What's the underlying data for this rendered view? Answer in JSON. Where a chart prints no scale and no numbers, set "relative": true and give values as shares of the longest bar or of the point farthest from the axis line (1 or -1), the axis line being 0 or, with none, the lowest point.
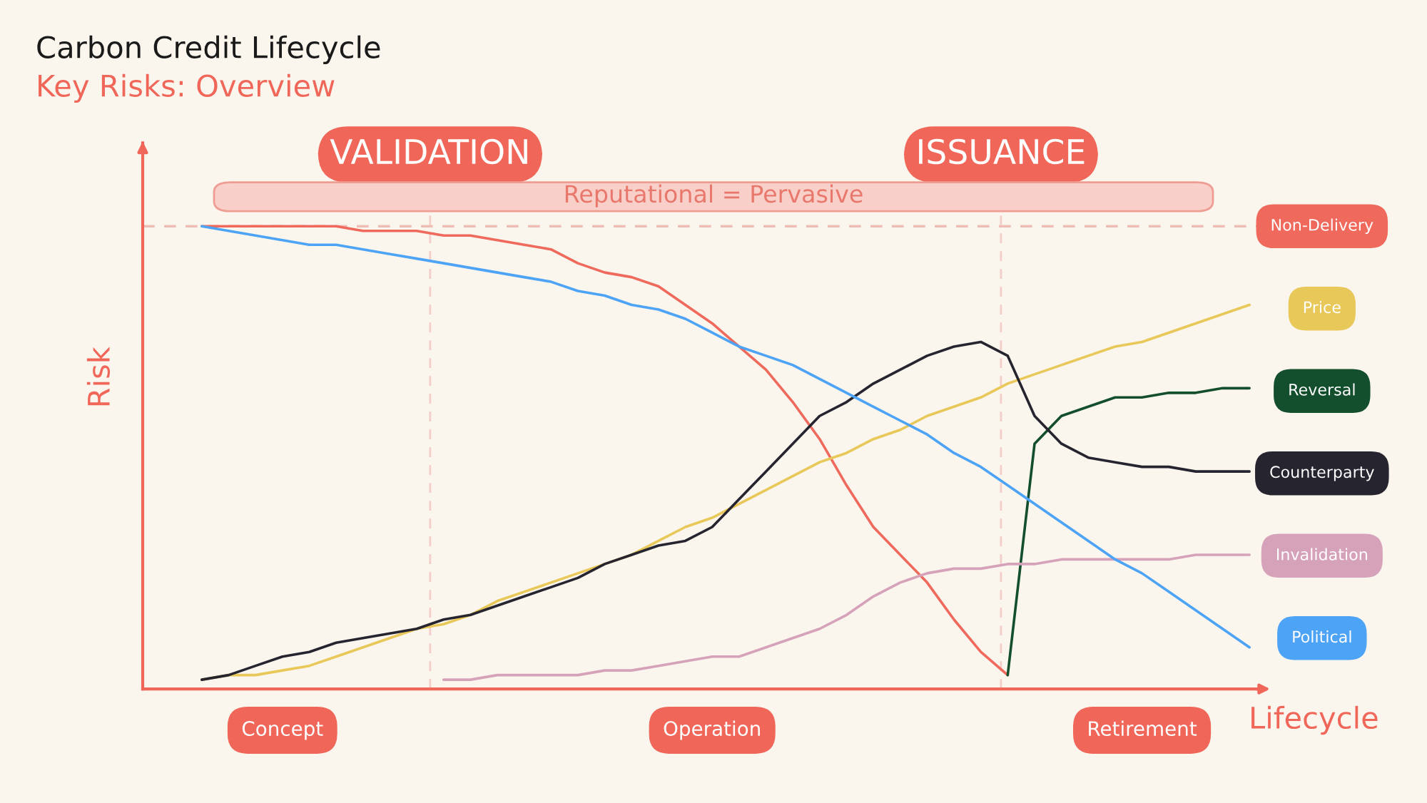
{
  "chart_data": {
    "type": "line",
    "title": "Carbon Credit Lifecycle",
    "subtitle": "Key Risks: Overview",
    "xlabel": "Lifecycle",
    "ylabel": "Risk",
    "relative": true,
    "categories": [
      null,
      null,
      null,
      "Concept",
      null,
      null,
      null,
      null,
      null,
      null,
      null,
      null,
      null,
      null,
      null,
      null,
      null,
      null,
      null,
      "Operation",
      null,
      null,
      null,
      null,
      null,
      null,
      null,
      null,
      null,
      null,
      null,
      null,
      null,
      null,
      null,
      "Retirement",
      null,
      null,
      null,
      null
    ],
    "series": [
      {
        "name": "Non-Delivery",
        "color": "#ef6a5c",
        "values": [
          1.0,
          1.0,
          1.0,
          1.0,
          1.0,
          1.0,
          0.99,
          0.99,
          0.99,
          0.98,
          0.98,
          0.97,
          0.96,
          0.95,
          0.92,
          0.9,
          0.89,
          0.87,
          0.83,
          0.79,
          0.74,
          0.69,
          0.62,
          0.54,
          0.44,
          0.35,
          0.29,
          0.23,
          0.15,
          0.08,
          0.03,
          null,
          null,
          null,
          null,
          null,
          null,
          null,
          null,
          null
        ]
      },
      {
        "name": "Price",
        "color": "#e9c85a",
        "values": [
          0.02,
          0.03,
          0.03,
          0.04,
          0.05,
          0.07,
          0.09,
          0.11,
          0.13,
          0.14,
          0.16,
          0.19,
          0.21,
          0.23,
          0.25,
          0.27,
          0.29,
          0.32,
          0.35,
          0.37,
          0.4,
          0.43,
          0.46,
          0.49,
          0.51,
          0.54,
          0.56,
          0.59,
          0.61,
          0.63,
          0.66,
          0.68,
          0.7,
          0.72,
          0.74,
          0.75,
          0.77,
          0.79,
          0.81,
          0.83
        ]
      },
      {
        "name": "Reversal",
        "color": "#134e2d",
        "values": [
          null,
          null,
          null,
          null,
          null,
          null,
          null,
          null,
          null,
          null,
          null,
          null,
          null,
          null,
          null,
          null,
          null,
          null,
          null,
          null,
          null,
          null,
          null,
          null,
          null,
          null,
          null,
          null,
          null,
          null,
          0.03,
          0.53,
          0.59,
          0.61,
          0.63,
          0.63,
          0.64,
          0.64,
          0.65,
          0.65
        ]
      },
      {
        "name": "Counterparty",
        "color": "#25242f",
        "values": [
          0.02,
          0.03,
          0.05,
          0.07,
          0.08,
          0.1,
          0.11,
          0.12,
          0.13,
          0.15,
          0.16,
          0.18,
          0.2,
          0.22,
          0.24,
          0.27,
          0.29,
          0.31,
          0.32,
          0.35,
          0.41,
          0.47,
          0.53,
          0.59,
          0.62,
          0.66,
          0.69,
          0.72,
          0.74,
          0.75,
          0.72,
          0.59,
          0.53,
          0.5,
          0.49,
          0.48,
          0.48,
          0.47,
          0.47,
          0.47
        ]
      },
      {
        "name": "Invalidation",
        "color": "#d6a2ba",
        "values": [
          null,
          null,
          null,
          null,
          null,
          null,
          null,
          null,
          null,
          0.02,
          0.02,
          0.03,
          0.03,
          0.03,
          0.03,
          0.04,
          0.04,
          0.05,
          0.06,
          0.07,
          0.07,
          0.09,
          0.11,
          0.13,
          0.16,
          0.2,
          0.23,
          0.25,
          0.26,
          0.26,
          0.27,
          0.27,
          0.28,
          0.28,
          0.28,
          0.28,
          0.28,
          0.29,
          0.29,
          0.29
        ]
      },
      {
        "name": "Political",
        "color": "#4da3f5",
        "values": [
          1.0,
          0.99,
          0.98,
          0.97,
          0.96,
          0.96,
          0.95,
          0.94,
          0.93,
          0.92,
          0.91,
          0.9,
          0.89,
          0.88,
          0.86,
          0.85,
          0.83,
          0.82,
          0.8,
          0.77,
          0.74,
          0.72,
          0.7,
          0.67,
          0.64,
          0.61,
          0.58,
          0.55,
          0.51,
          0.48,
          0.44,
          0.4,
          0.36,
          0.32,
          0.28,
          0.25,
          0.21,
          0.17,
          0.13,
          0.09
        ]
      }
    ],
    "ref_lines": [
      {
        "axis": "y",
        "value": 1,
        "color": "#efbdb5",
        "line_style": "dashed"
      }
    ],
    "annotations": [
      "VALIDATION",
      "ISSUANCE",
      "Reputational = Pervasive"
    ],
    "legend": false,
    "grid": false,
    "tick_labels": "x",
    "marker": "none",
    "line_style": "solid"
  }
}
